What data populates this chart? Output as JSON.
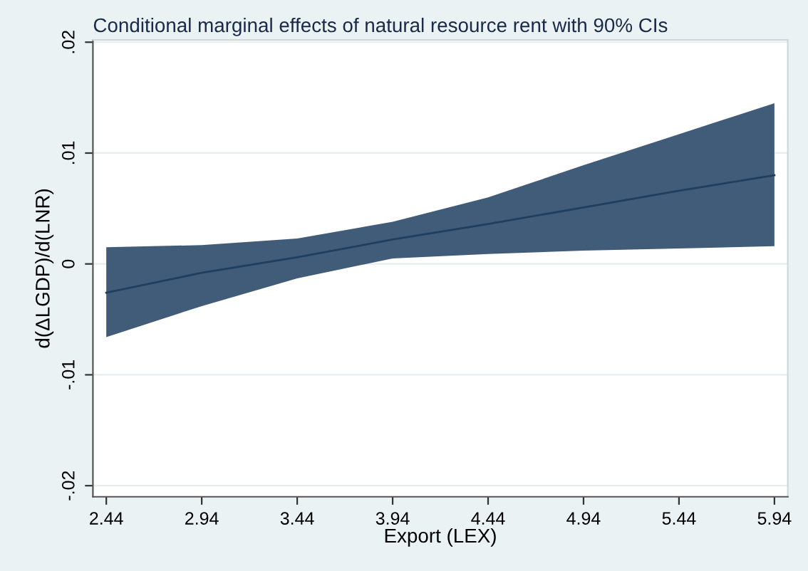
{
  "chart_data": {
    "type": "line",
    "title": "Conditional marginal effects of natural resource rent with 90% CIs",
    "xlabel": "Export (LEX)",
    "ylabel": "d(ΔLGDP)/d(LNR)",
    "x": [
      2.44,
      2.94,
      3.44,
      3.94,
      4.44,
      4.94,
      5.44,
      5.94
    ],
    "series": [
      {
        "color": "#1f3f60",
        "values": [
          -0.0026,
          -0.0008,
          0.0006,
          0.0022,
          0.0036,
          0.0051,
          0.0066,
          0.008
        ],
        "lower": [
          -0.0066,
          -0.0038,
          -0.0013,
          0.0005,
          0.0009,
          0.0012,
          0.0014,
          0.0016
        ],
        "upper": [
          0.0015,
          0.0017,
          0.0023,
          0.0038,
          0.006,
          0.0089,
          0.0117,
          0.0145
        ]
      }
    ],
    "xlim": [
      2.37,
      6.01
    ],
    "ylim": [
      -0.021,
      0.0202
    ],
    "xticks": [
      2.44,
      2.94,
      3.44,
      3.94,
      4.44,
      4.94,
      5.44,
      5.94
    ],
    "yticks": [
      {
        "value": -0.02,
        "label": "-.02"
      },
      {
        "value": -0.01,
        "label": "-.01"
      },
      0,
      {
        "value": 0.01,
        "label": ".01"
      },
      {
        "value": 0.02,
        "label": ".02"
      }
    ],
    "grid": "y",
    "marker": "none",
    "line_style": "solid"
  }
}
